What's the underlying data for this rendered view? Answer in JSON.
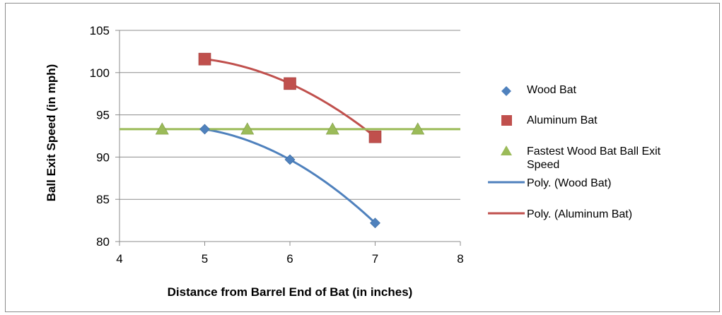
{
  "chart_data": {
    "type": "scatter",
    "title": "",
    "xlabel": "Distance from Barrel End of Bat (in inches)",
    "ylabel": "Ball Exit Speed (in mph)",
    "xlim": [
      4,
      8
    ],
    "ylim": [
      80,
      105
    ],
    "x_ticks": [
      "4",
      "5",
      "6",
      "7",
      "8"
    ],
    "y_ticks": [
      "80",
      "85",
      "90",
      "95",
      "100",
      "105"
    ],
    "grid": "horizontal",
    "legend_position": "right",
    "series": [
      {
        "name": "Wood Bat",
        "kind": "markers",
        "marker": "diamond",
        "color": "#4f81bd",
        "points": [
          [
            5,
            93.3
          ],
          [
            6,
            89.7
          ],
          [
            7,
            82.2
          ]
        ]
      },
      {
        "name": "Aluminum Bat",
        "kind": "markers",
        "marker": "square",
        "color": "#c0504d",
        "points": [
          [
            5,
            101.6
          ],
          [
            6,
            98.7
          ],
          [
            7,
            92.4
          ]
        ]
      },
      {
        "name": "Fastest Wood Bat Ball Exit Speed",
        "kind": "markers",
        "marker": "triangle",
        "color": "#9bbb59",
        "points": [
          [
            4.5,
            93.3
          ],
          [
            5.5,
            93.3
          ],
          [
            6.5,
            93.3
          ],
          [
            7.5,
            93.3
          ]
        ]
      },
      {
        "name": "Poly. (Wood Bat)",
        "kind": "trendline",
        "color": "#4f81bd",
        "fit_of": [
          [
            5,
            93.3
          ],
          [
            6,
            89.7
          ],
          [
            7,
            82.2
          ]
        ],
        "x_range": [
          5,
          7
        ]
      },
      {
        "name": "Poly. (Aluminum Bat)",
        "kind": "trendline",
        "color": "#c0504d",
        "fit_of": [
          [
            5,
            101.6
          ],
          [
            6,
            98.7
          ],
          [
            7,
            92.4
          ]
        ],
        "x_range": [
          5,
          7
        ]
      },
      {
        "name": "",
        "kind": "reference-line",
        "color": "#9bbb59",
        "y": 93.3,
        "x_range": [
          4,
          8
        ]
      }
    ]
  }
}
